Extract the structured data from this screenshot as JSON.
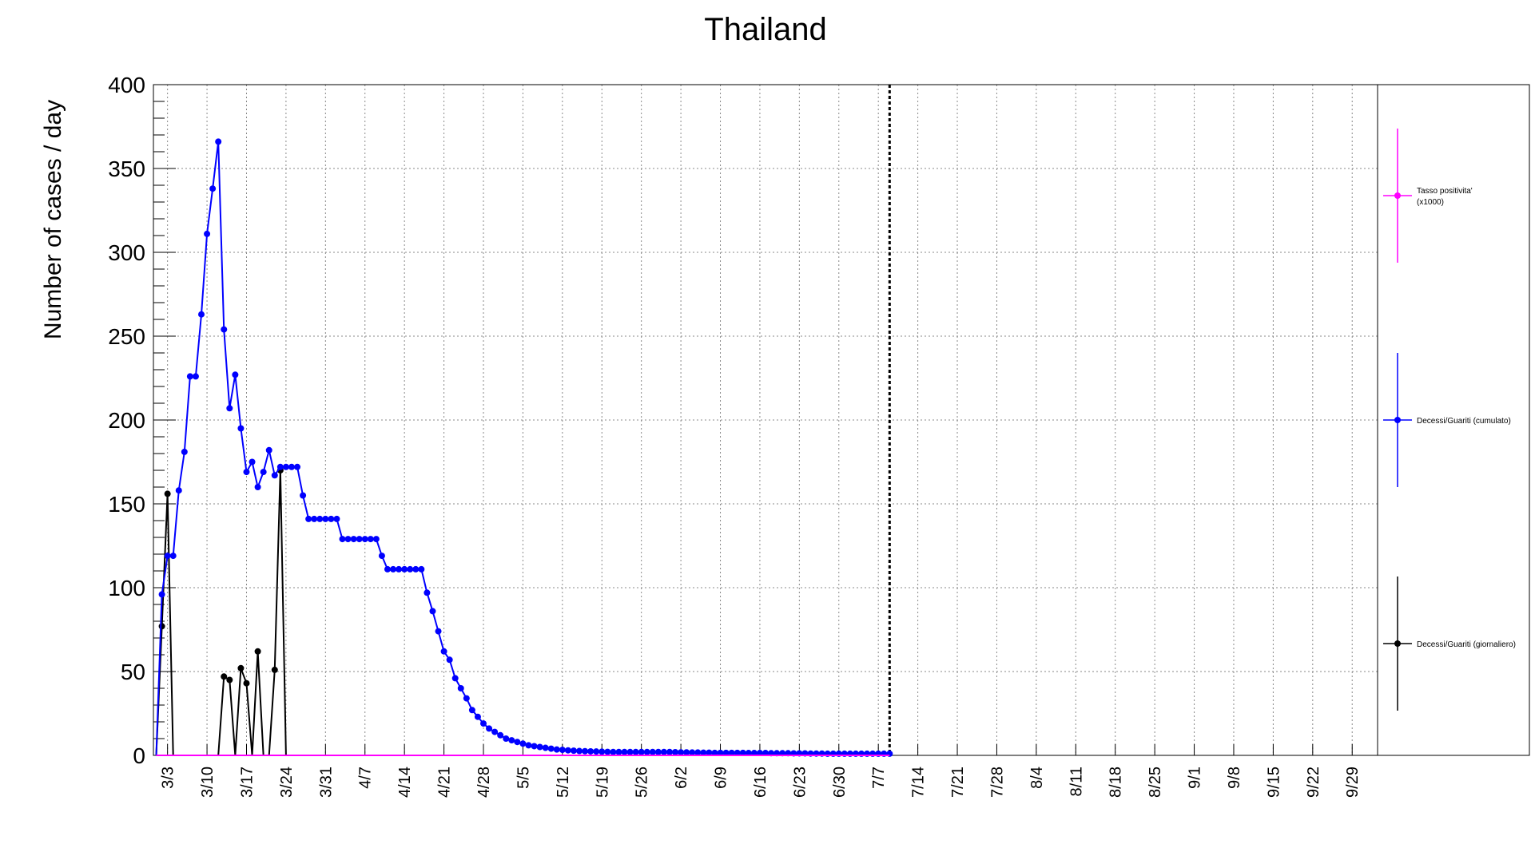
{
  "chart_data": {
    "type": "line",
    "title": "Thailand",
    "xlabel": "",
    "ylabel": "Number of cases / day",
    "ylim": [
      0,
      400
    ],
    "y_ticks": [
      0,
      50,
      100,
      150,
      200,
      250,
      300,
      350,
      400
    ],
    "grid": true,
    "legend_placement": "right",
    "x_start": "3/1",
    "x_end": "10/3",
    "x_tick_labels": [
      "3/3",
      "3/10",
      "3/17",
      "3/24",
      "3/31",
      "4/7",
      "4/14",
      "4/21",
      "4/28",
      "5/5",
      "5/12",
      "5/19",
      "5/26",
      "6/2",
      "6/9",
      "6/16",
      "6/23",
      "6/30",
      "7/7",
      "7/14",
      "7/21",
      "7/28",
      "8/4",
      "8/11",
      "8/18",
      "8/25",
      "9/1",
      "9/8",
      "9/15",
      "9/22",
      "9/29"
    ],
    "current_date_marker": "7/9",
    "series": [
      {
        "name": "Tasso positivita' (x1000)",
        "legend_lines": [
          "Tasso positivita'",
          "(x1000)"
        ],
        "color": "#ff00ff",
        "start": "3/1",
        "values": [
          0,
          0,
          0,
          0,
          0,
          0,
          0,
          0,
          0,
          0,
          0,
          0,
          0,
          0,
          0,
          0,
          0,
          0,
          0,
          0,
          0,
          0,
          0,
          0,
          0,
          0,
          0,
          0,
          0,
          0,
          0,
          0,
          0,
          0,
          0,
          0,
          0,
          0,
          0,
          0,
          0,
          0,
          0,
          0,
          0,
          0,
          0,
          0,
          0,
          0,
          0,
          0,
          0,
          0,
          0,
          0,
          0,
          0,
          0,
          0,
          0,
          0,
          0,
          0,
          0,
          0,
          0,
          0,
          0,
          0,
          0,
          0,
          0,
          0,
          0,
          0,
          0,
          0,
          0,
          0,
          0,
          0,
          0,
          0,
          0,
          0,
          0,
          0,
          0,
          0,
          0,
          0,
          0,
          0,
          0,
          0,
          0,
          0,
          0,
          0,
          0,
          0,
          0,
          0,
          0,
          0,
          0,
          0,
          0,
          0,
          0,
          0,
          0,
          0,
          0,
          0,
          0,
          0,
          0,
          0,
          0,
          0,
          0,
          0,
          0,
          0,
          0,
          0,
          0,
          0,
          0
        ]
      },
      {
        "name": "Decessi/Guariti (cumulato)",
        "legend_lines": [
          "Decessi/Guariti (cumulato)"
        ],
        "color": "#0000ff",
        "start": "3/1",
        "values": [
          0,
          96,
          119,
          119,
          158,
          181,
          226,
          226,
          263,
          311,
          338,
          366,
          254,
          207,
          227,
          195,
          169,
          175,
          160,
          169,
          182,
          167,
          172,
          172,
          172,
          172,
          155,
          141,
          141,
          141,
          141,
          141,
          141,
          129,
          129,
          129,
          129,
          129,
          129,
          129,
          119,
          111,
          111,
          111,
          111,
          111,
          111,
          111,
          97,
          86,
          74,
          62,
          57,
          46,
          40,
          34,
          27,
          23,
          19,
          16,
          14,
          12,
          10,
          9,
          8,
          7,
          6,
          5.5,
          5,
          4.5,
          4,
          3.5,
          3.3,
          3,
          2.8,
          2.6,
          2.5,
          2.4,
          2.3,
          2.2,
          2.1,
          2,
          2,
          2,
          2,
          2,
          2,
          2,
          2,
          2,
          2,
          2,
          1.9,
          1.8,
          1.8,
          1.7,
          1.7,
          1.6,
          1.6,
          1.5,
          1.5,
          1.5,
          1.5,
          1.5,
          1.5,
          1.4,
          1.4,
          1.4,
          1.4,
          1.3,
          1.3,
          1.3,
          1.3,
          1.2,
          1.2,
          1.2,
          1.1,
          1.1,
          1.1,
          1.0,
          1.0,
          1.0,
          1.0,
          1.0,
          1.0,
          1.0,
          1.0,
          1.0,
          1.0,
          1.0,
          1.0
        ]
      },
      {
        "name": "Decessi/Guariti (giornaliero)",
        "legend_lines": [
          "Decessi/Guariti (giornaliero)"
        ],
        "color": "#000000",
        "start": "3/1",
        "values": [
          0,
          77,
          156,
          0,
          0,
          0,
          0,
          0,
          0,
          0,
          0,
          0,
          47,
          45,
          0,
          52,
          43,
          0,
          62,
          0,
          0,
          51,
          170,
          0
        ]
      }
    ]
  }
}
